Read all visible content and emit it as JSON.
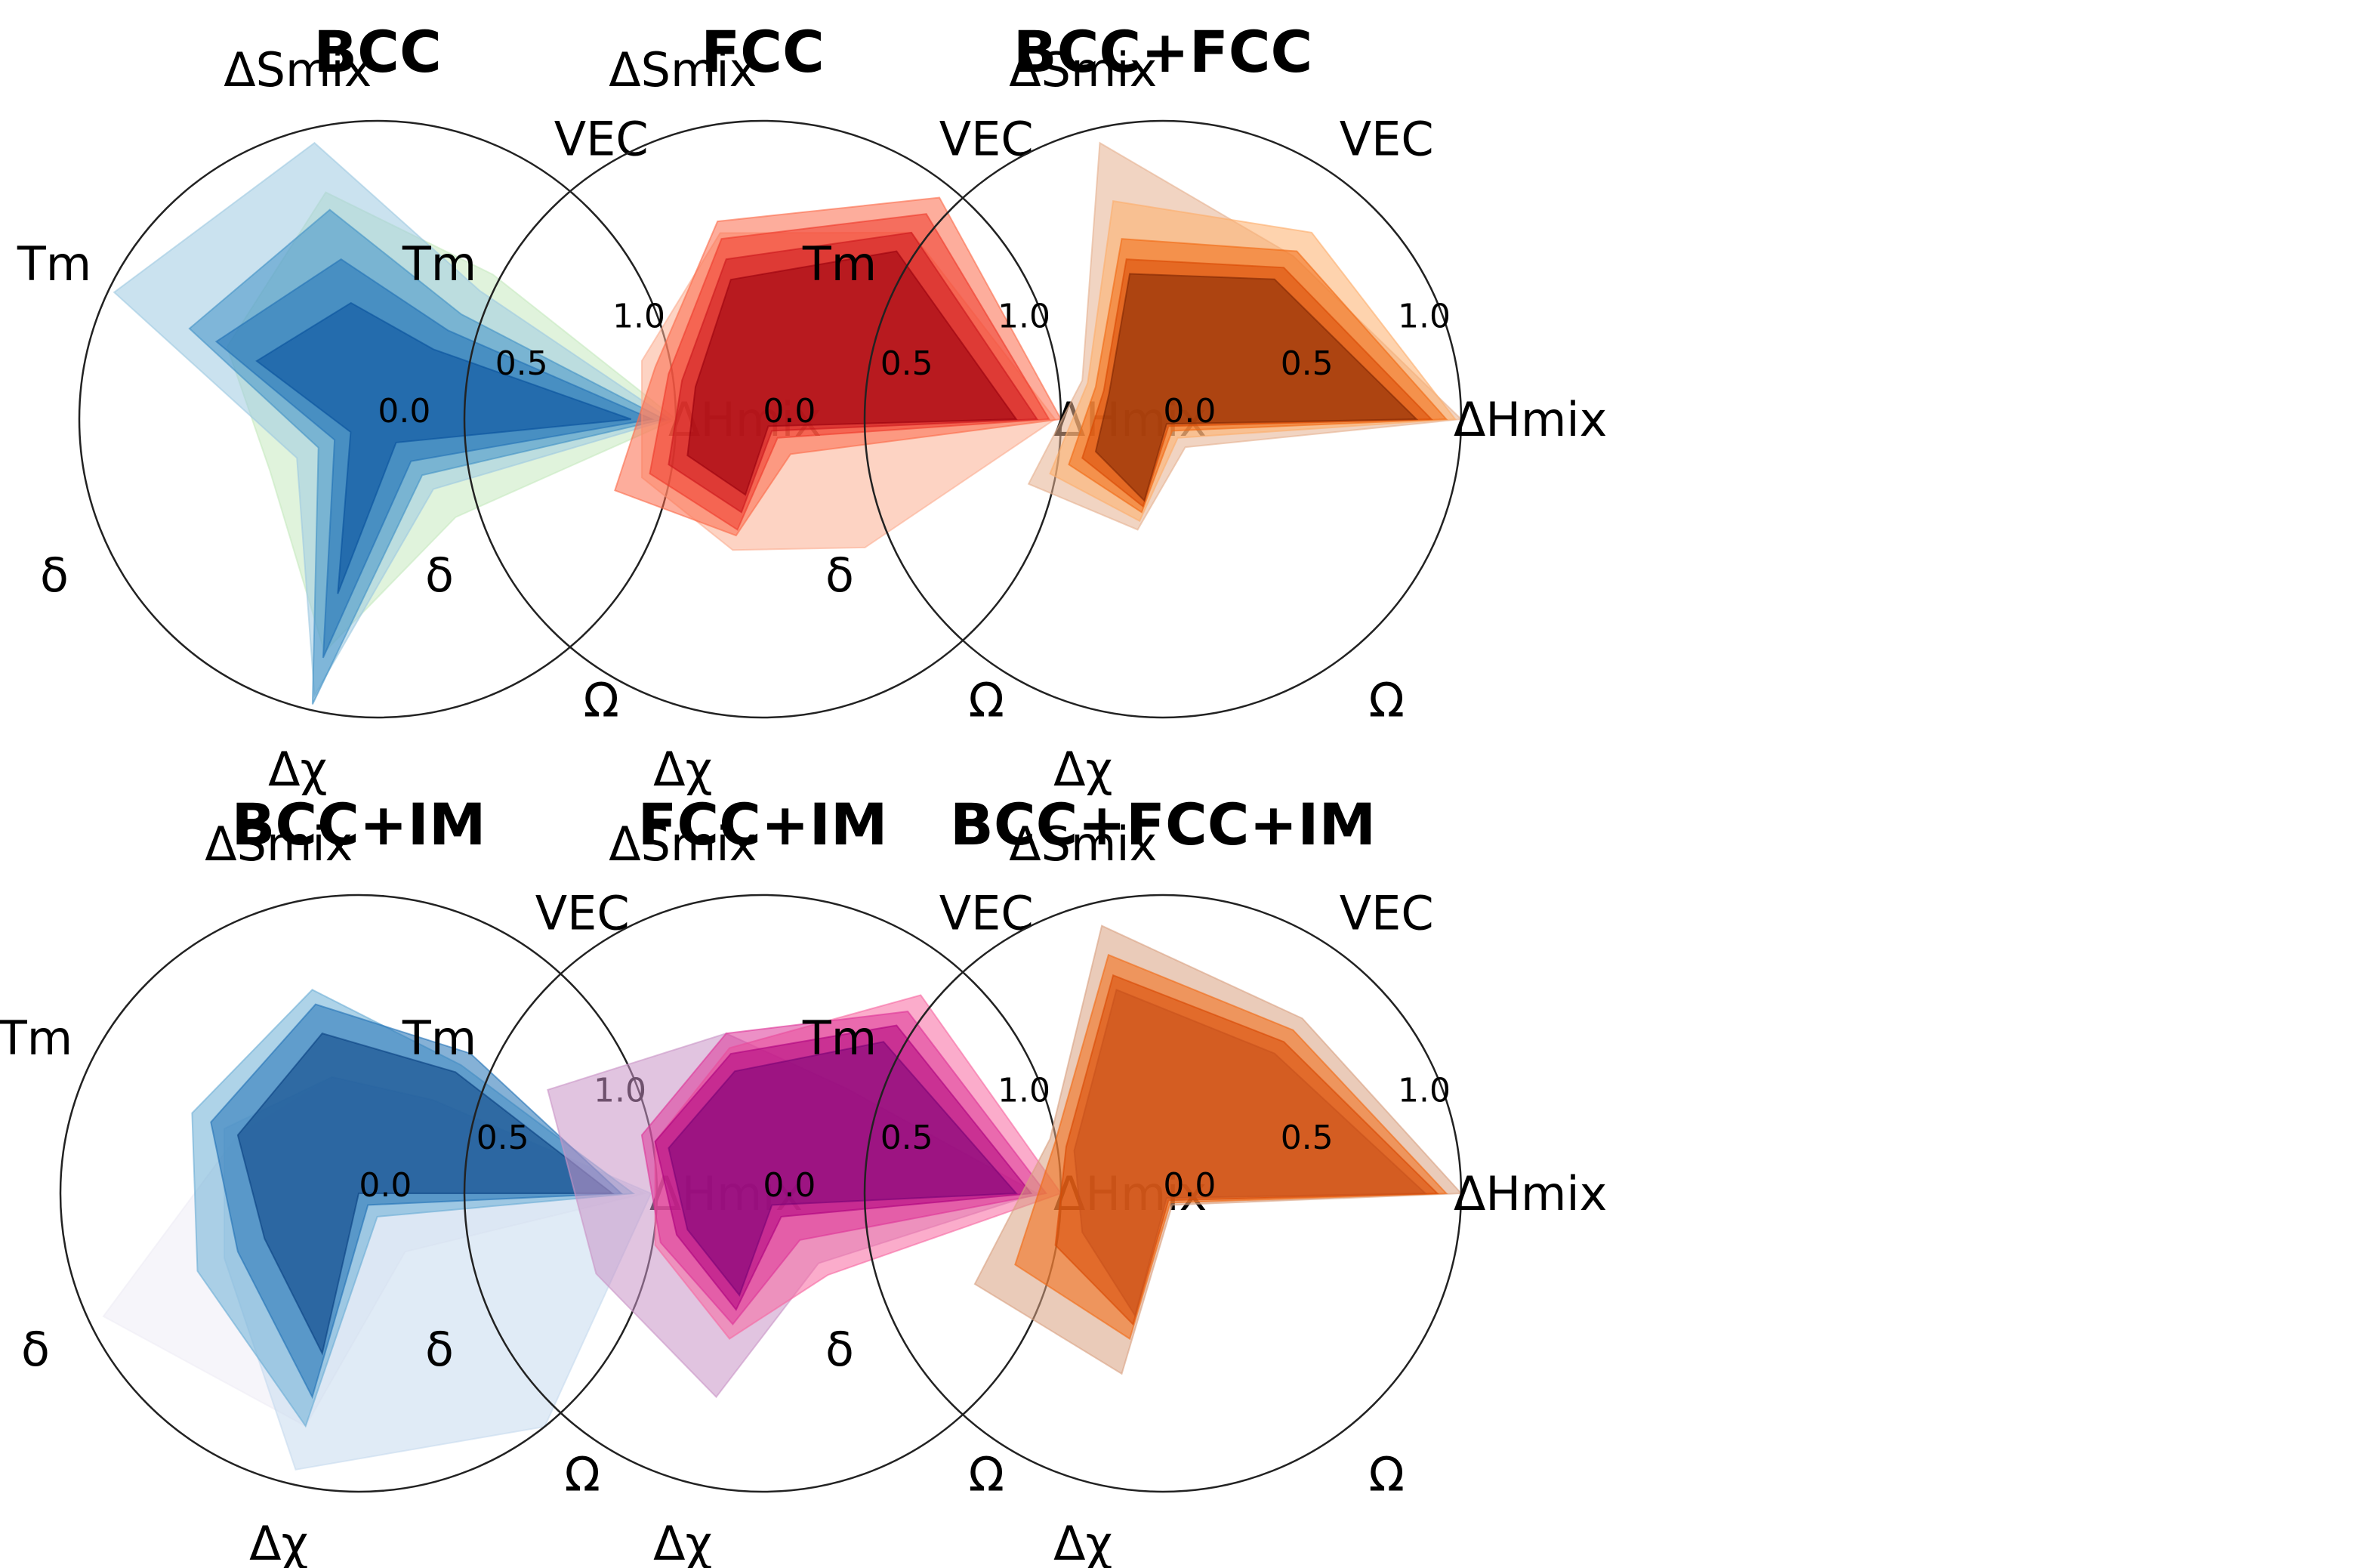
{
  "chart_data": [
    {
      "type": "radar",
      "title": "BCC",
      "axes": [
        "ΔHmix",
        "VEC",
        "ΔSmix",
        "Tm",
        "δ",
        "Δχ",
        "Ω"
      ],
      "rlim": [
        0,
        1
      ],
      "radial_ticks": [
        "0.0",
        "0.5",
        "1.0"
      ],
      "grid": false,
      "colors": [
        "#c7e9c0",
        "#9ecae1",
        "#4292c6",
        "#2171b5",
        "#08519c"
      ],
      "series": [
        {
          "values": [
            1.0,
            0.62,
            0.78,
            0.56,
            0.4,
            0.8,
            0.42
          ]
        },
        {
          "values": [
            0.98,
            0.55,
            0.95,
            0.98,
            0.3,
            0.95,
            0.3
          ]
        },
        {
          "values": [
            0.96,
            0.45,
            0.72,
            0.7,
            0.22,
            0.98,
            0.24
          ]
        },
        {
          "values": [
            0.92,
            0.38,
            0.55,
            0.6,
            0.16,
            0.82,
            0.18
          ]
        },
        {
          "values": [
            0.85,
            0.3,
            0.4,
            0.45,
            0.1,
            0.6,
            0.1
          ]
        }
      ]
    },
    {
      "type": "radar",
      "title": "FCC",
      "axes": [
        "ΔHmix",
        "VEC",
        "ΔSmix",
        "Tm",
        "δ",
        "Δχ",
        "Ω"
      ],
      "rlim": [
        0,
        1
      ],
      "radial_ticks": [
        "0.0",
        "0.5",
        "1.0"
      ],
      "grid": false,
      "colors": [
        "#fcae91",
        "#fb6a4a",
        "#ef3b2c",
        "#cb181d",
        "#99000d"
      ],
      "series": [
        {
          "values": [
            0.98,
            0.8,
            0.64,
            0.45,
            0.45,
            0.45,
            0.55
          ]
        },
        {
          "values": [
            1.0,
            0.95,
            0.68,
            0.4,
            0.55,
            0.4,
            0.15
          ]
        },
        {
          "values": [
            0.96,
            0.88,
            0.62,
            0.35,
            0.42,
            0.38,
            0.08
          ]
        },
        {
          "values": [
            0.92,
            0.8,
            0.55,
            0.3,
            0.35,
            0.32,
            0.05
          ]
        },
        {
          "values": [
            0.85,
            0.72,
            0.48,
            0.25,
            0.28,
            0.26,
            0.03
          ]
        }
      ]
    },
    {
      "type": "radar",
      "title": "BCC+FCC",
      "axes": [
        "ΔHmix",
        "VEC",
        "ΔSmix",
        "Tm",
        "δ",
        "Δχ",
        "Ω"
      ],
      "rlim": [
        0,
        1
      ],
      "radial_ticks": [
        "0.0",
        "0.5",
        "1.0"
      ],
      "grid": false,
      "colors": [
        "#e6b090",
        "#fdae6b",
        "#f16913",
        "#d94801",
        "#7f2704"
      ],
      "series": [
        {
          "values": [
            1.0,
            0.7,
            0.95,
            0.3,
            0.5,
            0.38,
            0.12
          ]
        },
        {
          "values": [
            0.98,
            0.8,
            0.75,
            0.28,
            0.42,
            0.35,
            0.08
          ]
        },
        {
          "values": [
            0.95,
            0.72,
            0.62,
            0.25,
            0.35,
            0.32,
            0.05
          ]
        },
        {
          "values": [
            0.9,
            0.65,
            0.55,
            0.22,
            0.3,
            0.3,
            0.03
          ]
        },
        {
          "values": [
            0.85,
            0.6,
            0.5,
            0.2,
            0.25,
            0.28,
            0.02
          ]
        }
      ]
    },
    {
      "type": "radar",
      "title": "BCC+IM",
      "axes": [
        "ΔHmix",
        "VEC",
        "ΔSmix",
        "Tm",
        "δ",
        "Δχ",
        "Ω"
      ],
      "rlim": [
        0,
        1
      ],
      "radial_ticks": [
        "0.0",
        "0.5",
        "1.0"
      ],
      "grid": false,
      "colors": [
        "#efedf5",
        "#c6dbef",
        "#6baed6",
        "#2171b5",
        "#084081"
      ],
      "series": [
        {
          "values": [
            0.96,
            0.4,
            0.4,
            0.45,
            0.95,
            0.8,
            0.25
          ]
        },
        {
          "values": [
            0.98,
            0.4,
            0.4,
            0.5,
            0.5,
            0.95,
            1.0
          ]
        },
        {
          "values": [
            0.92,
            0.55,
            0.7,
            0.62,
            0.6,
            0.8,
            0.1
          ]
        },
        {
          "values": [
            0.88,
            0.6,
            0.65,
            0.55,
            0.45,
            0.7,
            0.05
          ]
        },
        {
          "values": [
            0.85,
            0.52,
            0.55,
            0.45,
            0.35,
            0.55,
            0.0
          ]
        }
      ]
    },
    {
      "type": "radar",
      "title": "FCC+IM",
      "axes": [
        "ΔHmix",
        "VEC",
        "ΔSmix",
        "Tm",
        "δ",
        "Δχ",
        "Ω"
      ],
      "rlim": [
        0,
        1
      ],
      "radial_ticks": [
        "0.0",
        "0.5",
        "1.0"
      ],
      "grid": false,
      "colors": [
        "#c994c7",
        "#f768a1",
        "#dd3497",
        "#ae017e",
        "#7a0177"
      ],
      "series": [
        {
          "values": [
            0.92,
            0.45,
            0.55,
            0.8,
            0.62,
            0.7,
            0.3
          ]
        },
        {
          "values": [
            1.0,
            0.85,
            0.5,
            0.4,
            0.4,
            0.5,
            0.35
          ]
        },
        {
          "values": [
            0.95,
            0.78,
            0.55,
            0.45,
            0.38,
            0.45,
            0.2
          ]
        },
        {
          "values": [
            0.9,
            0.72,
            0.48,
            0.4,
            0.32,
            0.4,
            0.1
          ]
        },
        {
          "values": [
            0.85,
            0.65,
            0.42,
            0.35,
            0.28,
            0.35,
            0.05
          ]
        }
      ]
    },
    {
      "type": "radar",
      "title": "BCC+FCC+IM",
      "axes": [
        "ΔHmix",
        "VEC",
        "ΔSmix",
        "Tm",
        "δ",
        "Δχ",
        "Ω"
      ],
      "rlim": [
        0,
        1
      ],
      "radial_ticks": [
        "0.0",
        "0.5",
        "1.0"
      ],
      "grid": false,
      "colors": [
        "#d9a080",
        "#f16913",
        "#d94801",
        "#c8521c"
      ],
      "series": [
        {
          "values": [
            1.0,
            0.75,
            0.92,
            0.42,
            0.7,
            0.62,
            0.05
          ]
        },
        {
          "values": [
            0.95,
            0.7,
            0.82,
            0.4,
            0.55,
            0.5,
            0.04
          ]
        },
        {
          "values": [
            0.92,
            0.65,
            0.75,
            0.36,
            0.4,
            0.45,
            0.03
          ]
        },
        {
          "values": [
            0.88,
            0.6,
            0.7,
            0.33,
            0.3,
            0.42,
            0.02
          ]
        }
      ]
    }
  ]
}
